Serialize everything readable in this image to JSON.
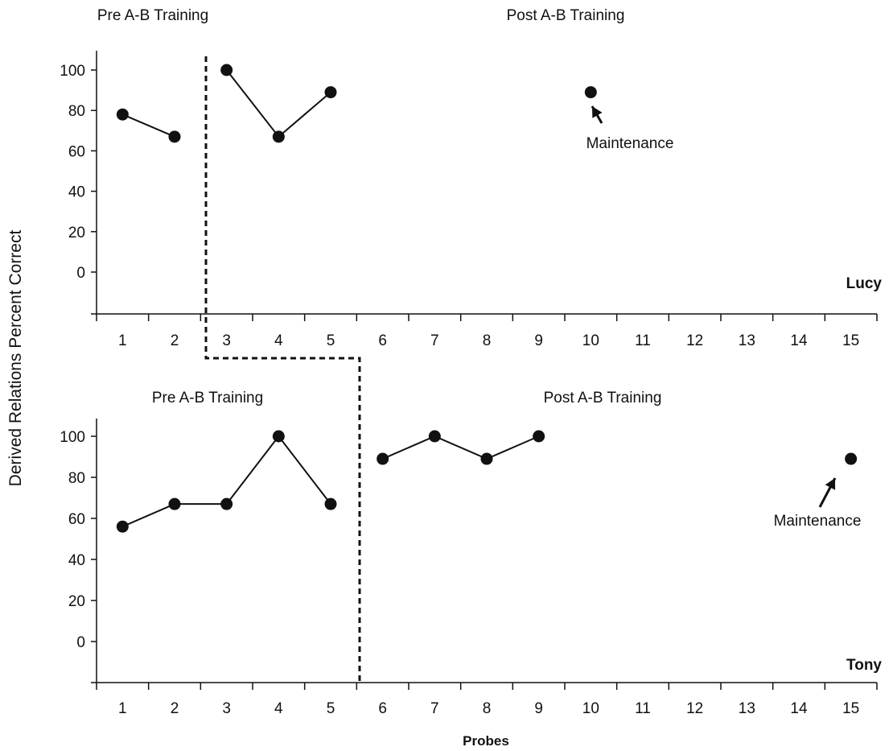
{
  "chart_data": {
    "type": "line",
    "ylabel": "Derived Relations Percent Correct",
    "xlabel": "Probes",
    "x_ticks": [
      1,
      2,
      3,
      4,
      5,
      6,
      7,
      8,
      9,
      10,
      11,
      12,
      13,
      14,
      15
    ],
    "y_ticks": [
      0,
      20,
      40,
      60,
      80,
      100
    ],
    "panels": [
      {
        "participant": "Lucy",
        "phase_labels": [
          "Pre A-B Training",
          "Post A-B Training"
        ],
        "phase_change_after_probe": 2,
        "series": [
          {
            "phase": "Pre A-B Training",
            "x": [
              1,
              2
            ],
            "y": [
              78,
              67
            ]
          },
          {
            "phase": "Post A-B Training",
            "x": [
              3,
              4,
              5
            ],
            "y": [
              100,
              67,
              89
            ]
          },
          {
            "phase": "Maintenance",
            "x": [
              10
            ],
            "y": [
              89
            ]
          }
        ],
        "annotation": "Maintenance"
      },
      {
        "participant": "Tony",
        "phase_labels": [
          "Pre A-B Training",
          "Post A-B Training"
        ],
        "phase_change_after_probe": 5,
        "series": [
          {
            "phase": "Pre A-B Training",
            "x": [
              1,
              2,
              3,
              4,
              5
            ],
            "y": [
              56,
              67,
              67,
              100,
              67
            ]
          },
          {
            "phase": "Post A-B Training",
            "x": [
              6,
              7,
              8,
              9
            ],
            "y": [
              89,
              100,
              89,
              100
            ]
          },
          {
            "phase": "Maintenance",
            "x": [
              15
            ],
            "y": [
              89
            ]
          }
        ],
        "annotation": "Maintenance"
      }
    ],
    "grid": false
  }
}
